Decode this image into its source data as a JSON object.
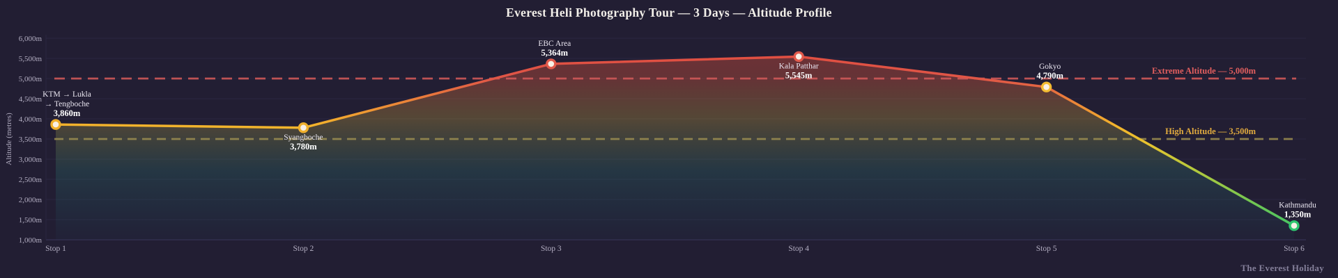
{
  "header": {
    "title": "Everest Heli Photography Tour — 3 Days — Altitude Profile"
  },
  "footer": {
    "brand": "The Everest Holiday"
  },
  "chart_data": {
    "type": "line",
    "title": "Everest Heli Photography Tour — 3 Days — Altitude Profile",
    "xlabel": "",
    "ylabel": "Altitude (metres)",
    "categories": [
      "Stop 1",
      "Stop 2",
      "Stop 3",
      "Stop 4",
      "Stop 5",
      "Stop 6"
    ],
    "series": [
      {
        "name": "Altitude profile",
        "values": [
          3860,
          3780,
          5364,
          5545,
          4790,
          1350
        ]
      }
    ],
    "ylim": [
      1000,
      6000
    ],
    "y_ticks": [
      "6,000m",
      "5,500m",
      "5,000m",
      "4,500m",
      "4,000m",
      "3,500m",
      "3,000m",
      "2,500m",
      "2,000m",
      "1,500m",
      "1,000m"
    ],
    "grid": true,
    "legend": "none",
    "points": [
      {
        "category": "Stop 1",
        "name_lines": [
          "KTM → Lukla",
          "→ Tengboche"
        ],
        "value_label": "3,860m",
        "value": 3860,
        "label_position": "above",
        "marker_color": "#f0b02c"
      },
      {
        "category": "Stop 2",
        "name_lines": [
          "Syangboche"
        ],
        "value_label": "3,780m",
        "value": 3780,
        "label_position": "below",
        "marker_color": "#f0b02c"
      },
      {
        "category": "Stop 3",
        "name_lines": [
          "EBC Area"
        ],
        "value_label": "5,364m",
        "value": 5364,
        "label_position": "above",
        "marker_color": "#e15a4c"
      },
      {
        "category": "Stop 4",
        "name_lines": [
          "Kala Patthar"
        ],
        "value_label": "5,545m",
        "value": 5545,
        "label_position": "below",
        "marker_color": "#e15a4c"
      },
      {
        "category": "Stop 5",
        "name_lines": [
          "Gokyo"
        ],
        "value_label": "4,790m",
        "value": 4790,
        "label_position": "above",
        "marker_color": "#f3bc33"
      },
      {
        "category": "Stop 6",
        "name_lines": [
          "Kathmandu"
        ],
        "value_label": "1,350m",
        "value": 1350,
        "label_position": "above",
        "marker_color": "#2fc46e"
      }
    ],
    "reference_lines": [
      {
        "label": "Extreme Altitude — 5,000m",
        "value": 5000,
        "text_color": "#e05e5e",
        "line_color": "#cf5858"
      },
      {
        "label": "High Altitude — 3,500m",
        "value": 3500,
        "text_color": "#dfa93e",
        "line_color": "#97894f"
      }
    ],
    "altitude_color_scale": [
      {
        "altitude": 6000,
        "color": "#e0493d"
      },
      {
        "altitude": 5000,
        "color": "#e05647"
      },
      {
        "altitude": 4500,
        "color": "#ea7e3a"
      },
      {
        "altitude": 3850,
        "color": "#f2b22c"
      },
      {
        "altitude": 3400,
        "color": "#e8c32f"
      },
      {
        "altitude": 2750,
        "color": "#b5c93c"
      },
      {
        "altitude": 1900,
        "color": "#6fc653"
      },
      {
        "altitude": 1000,
        "color": "#2fc46e"
      }
    ],
    "area_gradient": [
      {
        "offset": 0.0,
        "color": "rgba(224,72,60,0.42)"
      },
      {
        "offset": 0.2,
        "color": "rgba(210,85,60,0.38)"
      },
      {
        "offset": 0.4,
        "color": "rgba(180,150,60,0.34)"
      },
      {
        "offset": 0.52,
        "color": "rgba(120,140,80,0.30)"
      },
      {
        "offset": 0.66,
        "color": "rgba(45,125,115,0.26)"
      },
      {
        "offset": 0.85,
        "color": "rgba(35,90,100,0.20)"
      },
      {
        "offset": 1.0,
        "color": "rgba(30,55,80,0.14)"
      }
    ]
  },
  "colors": {
    "background": "#221e33",
    "grid": "#2b2741",
    "axis_spine": "#363153",
    "axis_text": "#b3aec2",
    "title_text": "#f2efe9",
    "label_text": "#e9e5f0",
    "value_text": "#ffffff",
    "marker_fill": "#f8f0e6",
    "footer_text": "#847f99"
  }
}
